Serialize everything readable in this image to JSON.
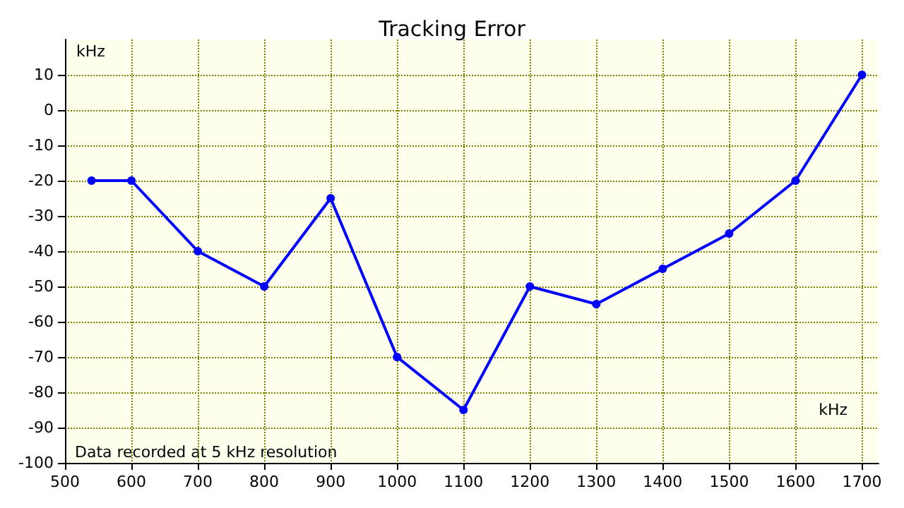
{
  "chart_data": {
    "type": "line",
    "title": "Tracking Error",
    "xlabel": "kHz",
    "ylabel": "kHz",
    "x": [
      540,
      600,
      700,
      800,
      900,
      1000,
      1100,
      1200,
      1300,
      1400,
      1500,
      1600,
      1700
    ],
    "series": [
      {
        "color": "#0000ff",
        "values": [
          -20,
          -20,
          -40,
          -50,
          -25,
          -70,
          -85,
          -50,
          -55,
          -45,
          -35,
          -20,
          10
        ]
      }
    ],
    "xlim": [
      500,
      1725
    ],
    "xticks": [
      500,
      600,
      700,
      800,
      900,
      1000,
      1100,
      1200,
      1300,
      1400,
      1500,
      1600,
      1700
    ],
    "ylim": [
      -100,
      20
    ],
    "yticks": [
      -100,
      -90,
      -80,
      -70,
      -60,
      -50,
      -40,
      -30,
      -20,
      -10,
      0,
      10
    ],
    "grid": true,
    "marker": "circle",
    "line_style": "solid",
    "annotations": [
      "Data recorded at 5 kHz resolution"
    ]
  }
}
